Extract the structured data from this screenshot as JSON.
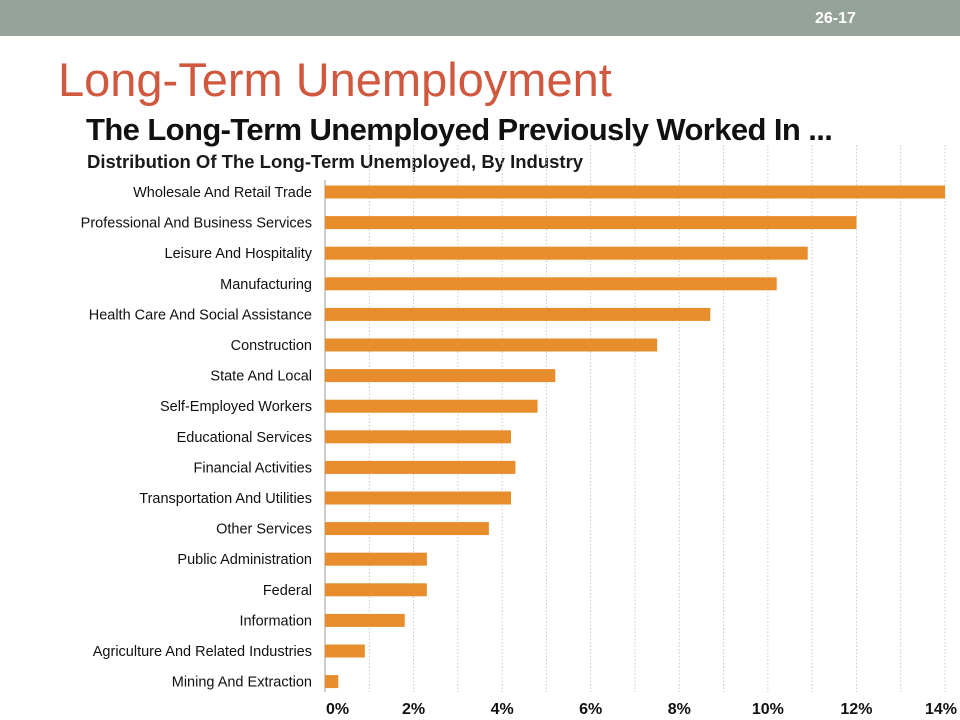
{
  "slide": {
    "number": "26-17",
    "title": "Long-Term Unemployment"
  },
  "colors": {
    "topbar": "#96a39a",
    "title": "#d0583e",
    "bar": "#e78d2b"
  },
  "chart_data": {
    "type": "bar",
    "orientation": "horizontal",
    "title": "The Long-Term Unemployed Previously Worked In ...",
    "subtitle": "Distribution Of The Long-Term Unemployed, By Industry",
    "xlabel": "",
    "ylabel": "",
    "xlim": [
      0,
      14
    ],
    "grid": true,
    "xticks": [
      "0%",
      "2%",
      "4%",
      "6%",
      "8%",
      "10%",
      "12%",
      "14%"
    ],
    "categories": [
      "Wholesale And Retail Trade",
      "Professional And Business Services",
      "Leisure And Hospitality",
      "Manufacturing",
      "Health Care And Social Assistance",
      "Construction",
      "State And Local",
      "Self-Employed Workers",
      "Educational Services",
      "Financial Activities",
      "Transportation And Utilities",
      "Other Services",
      "Public Administration",
      "Federal",
      "Information",
      "Agriculture And Related Industries",
      "Mining And Extraction"
    ],
    "values": [
      14.0,
      12.0,
      10.9,
      10.2,
      8.7,
      7.5,
      5.2,
      4.8,
      4.2,
      4.3,
      4.2,
      3.7,
      2.3,
      2.3,
      1.8,
      0.9,
      0.3
    ]
  }
}
